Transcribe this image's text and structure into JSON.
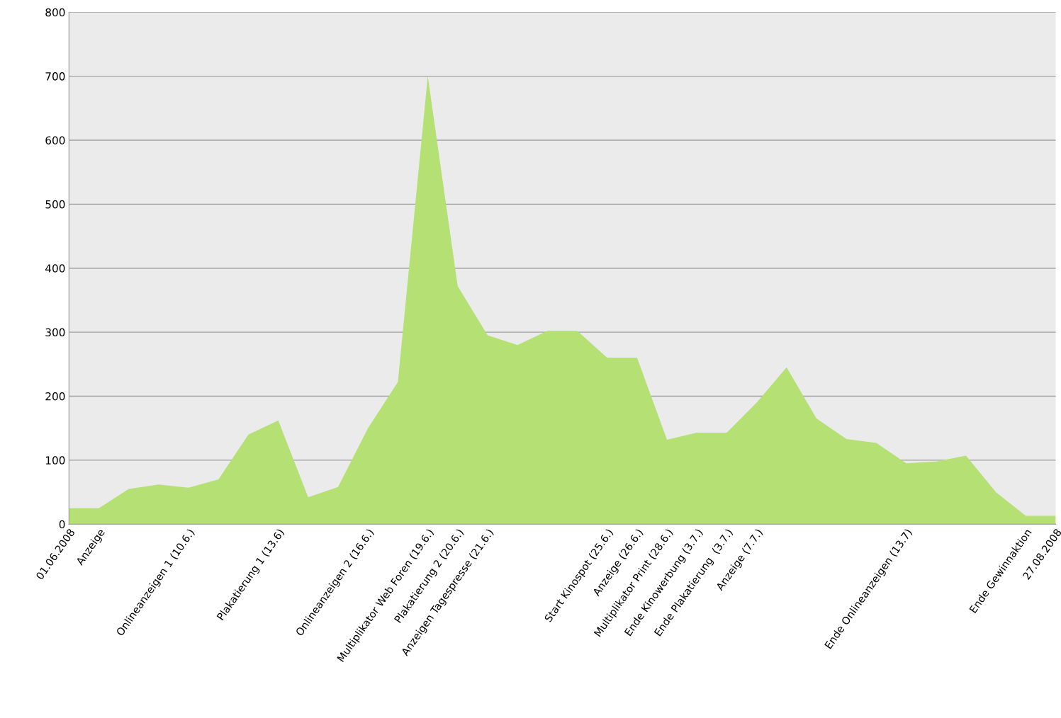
{
  "chart_data": {
    "type": "area",
    "categories": [
      "01.06.2008",
      "Anzeige",
      null,
      null,
      "Onlineanzeigen 1 (10.6.)",
      null,
      null,
      "Plakatierung 1 (13.6)",
      null,
      null,
      "Onlineanzeigen 2 (16.6.)",
      null,
      "Multiplikator Web Foren (19.6.)",
      "Plakatierung 2 (20.6.)",
      "Anzeigen Tagespresse (21.6.)",
      null,
      null,
      null,
      "Start Kinospot (25.6.)",
      "Anzeige (26.6.)",
      "Multiplikator Print (28.6.)",
      "Ende Kinowerbung (3.7.)",
      "Ende Plakatierung  (3.7.)",
      "Anzeige (7.7.)",
      null,
      null,
      null,
      null,
      "Ende Onlineanzeigen (13.7)",
      null,
      null,
      null,
      "Ende Gewinnaktion",
      "27.08.2008"
    ],
    "series": [
      {
        "color": "#b5e073",
        "values": [
          25,
          25,
          55,
          62,
          57,
          70,
          140,
          162,
          42,
          58,
          150,
          222,
          700,
          372,
          295,
          280,
          302,
          302,
          260,
          260,
          132,
          143,
          143,
          190,
          245,
          165,
          133,
          127,
          95,
          98,
          107,
          50,
          13,
          13
        ]
      }
    ],
    "ylim": [
      0,
      800
    ],
    "yticks": [
      0,
      100,
      200,
      300,
      400,
      500,
      600,
      700,
      800
    ],
    "grid": "y"
  }
}
